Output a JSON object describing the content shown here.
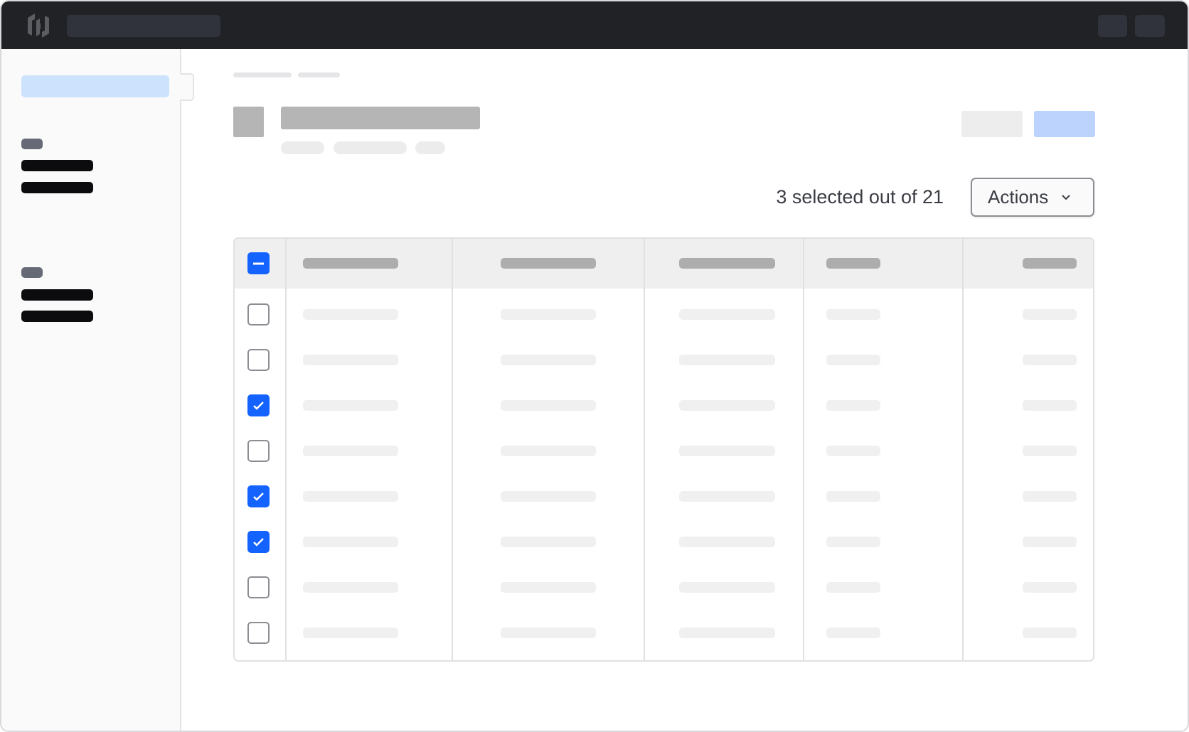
{
  "toolbar": {
    "selection_status": "3 selected out of 21",
    "actions_label": "Actions"
  },
  "table": {
    "header_checkbox_state": "indeterminate",
    "rows": [
      {
        "checked": false
      },
      {
        "checked": false
      },
      {
        "checked": true
      },
      {
        "checked": false
      },
      {
        "checked": true
      },
      {
        "checked": true
      },
      {
        "checked": false
      },
      {
        "checked": false
      }
    ]
  },
  "colors": {
    "accent": "#1563ff",
    "topbar": "#212226",
    "sidebar_active": "#cde3fd",
    "primary_button": "#bcd4fd"
  }
}
